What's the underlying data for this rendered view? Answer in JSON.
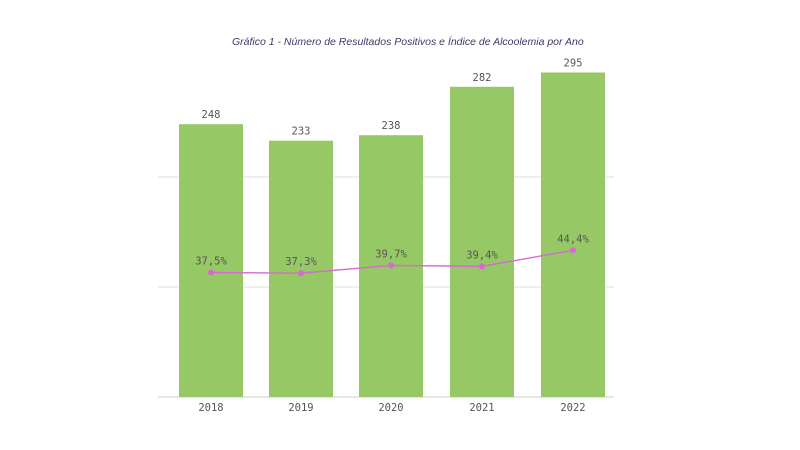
{
  "chart_data": {
    "type": "bar",
    "title": "Gráfico 1 - Número de Resultados Positivos e Índice de Alcoolemia por Ano",
    "categories": [
      "2018",
      "2019",
      "2020",
      "2021",
      "2022"
    ],
    "series": [
      {
        "type": "bar",
        "values": [
          248,
          233,
          238,
          282,
          295
        ],
        "labels": [
          "248",
          "233",
          "238",
          "282",
          "295"
        ],
        "color": "#97c866"
      },
      {
        "type": "line",
        "values": [
          37.5,
          37.3,
          39.7,
          39.4,
          44.4
        ],
        "labels": [
          "37,5%",
          "37,3%",
          "39,7%",
          "39,4%",
          "44,4%"
        ],
        "color": "#d66ad0"
      }
    ],
    "ylim": [
      0,
      300
    ],
    "grid": true,
    "gridlines": [
      100,
      200
    ]
  }
}
